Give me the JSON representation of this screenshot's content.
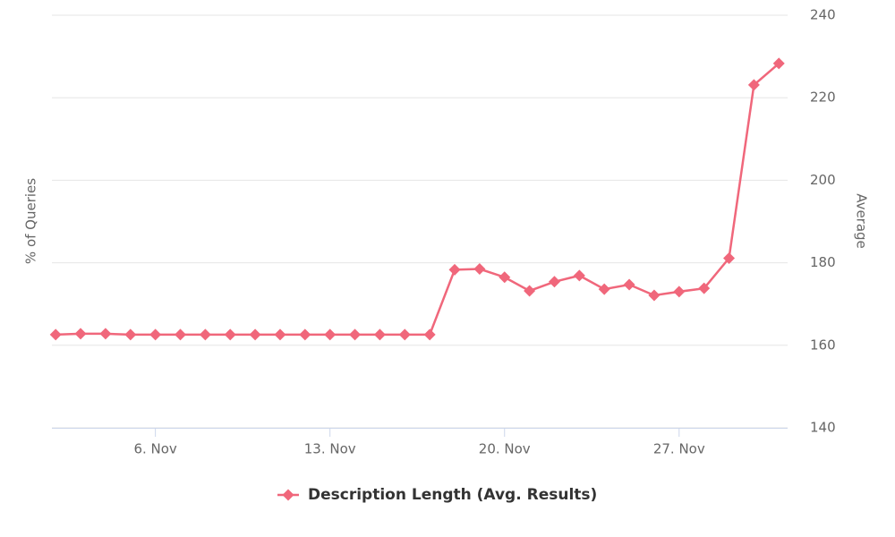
{
  "chart_data": {
    "type": "line",
    "y_label": "% of Queries",
    "y2_label": "Average",
    "x": [
      2,
      3,
      4,
      5,
      6,
      7,
      8,
      9,
      10,
      11,
      12,
      13,
      14,
      15,
      16,
      17,
      18,
      19,
      20,
      21,
      22,
      23,
      24,
      25,
      26,
      27,
      28,
      29,
      30,
      31
    ],
    "xlim": [
      1.85,
      31.35
    ],
    "xticks": [
      {
        "value": 6,
        "label": "6. Nov"
      },
      {
        "value": 13,
        "label": "13. Nov"
      },
      {
        "value": 20,
        "label": "20. Nov"
      },
      {
        "value": 27,
        "label": "27. Nov"
      }
    ],
    "y2lim": [
      140,
      240
    ],
    "y2ticks": [
      140,
      160,
      180,
      200,
      220,
      240
    ],
    "grid": true,
    "legend": "bottom",
    "series": [
      {
        "name": "Description Length (Avg. Results)",
        "color": "#f0677b",
        "axis": "y2",
        "values": [
          162.6,
          162.8,
          162.8,
          162.6,
          162.6,
          162.6,
          162.6,
          162.6,
          162.6,
          162.6,
          162.6,
          162.6,
          162.6,
          162.6,
          162.6,
          162.6,
          178.3,
          178.5,
          176.5,
          173.2,
          175.4,
          176.9,
          173.6,
          174.7,
          172.1,
          173.0,
          173.8,
          181.1,
          223.1,
          228.3
        ]
      }
    ]
  }
}
